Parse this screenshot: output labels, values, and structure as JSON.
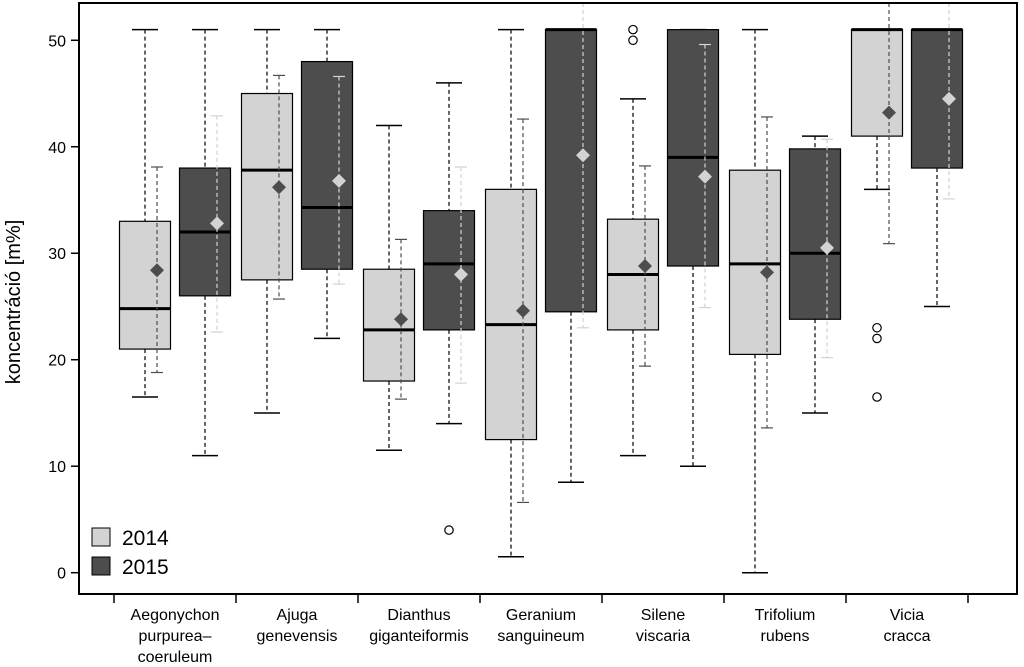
{
  "chart_data": {
    "type": "boxplot",
    "ylabel": "koncentráció [m%]",
    "ylim": [
      -2,
      53.5
    ],
    "yticks": [
      0,
      10,
      20,
      30,
      40,
      50
    ],
    "grid": false,
    "legend_position": "bottom-left",
    "categories": [
      "Aegonychon purpurea– coeruleum",
      "Ajuga genevensis",
      "Dianthus giganteiformis",
      "Geranium sanguineum",
      "Silene viscaria",
      "Trifolium rubens",
      "Vicia cracca"
    ],
    "category_lines": [
      [
        "Aegonychon",
        "purpurea–",
        "coeruleum"
      ],
      [
        "Ajuga",
        "genevensis"
      ],
      [
        "Dianthus",
        "giganteiformis"
      ],
      [
        "Geranium",
        "sanguineum"
      ],
      [
        "Silene",
        "viscaria"
      ],
      [
        "Trifolium",
        "rubens"
      ],
      [
        "Vicia",
        "cracca"
      ]
    ],
    "series": [
      {
        "name": "2014",
        "color": "#d3d3d3",
        "mean_marker_color": "#4d4d4d",
        "boxes": [
          {
            "whisker_low": 16.5,
            "q1": 21.0,
            "median": 24.8,
            "q3": 33.0,
            "whisker_high": 51.0,
            "mean": 28.4,
            "outliers": []
          },
          {
            "whisker_low": 15.0,
            "q1": 27.5,
            "median": 37.8,
            "q3": 45.0,
            "whisker_high": 51.0,
            "mean": 36.2,
            "outliers": []
          },
          {
            "whisker_low": 11.5,
            "q1": 18.0,
            "median": 22.8,
            "q3": 28.5,
            "whisker_high": 42.0,
            "mean": 23.8,
            "outliers": []
          },
          {
            "whisker_low": 1.5,
            "q1": 12.5,
            "median": 23.3,
            "q3": 36.0,
            "whisker_high": 51.0,
            "mean": 24.6,
            "outliers": []
          },
          {
            "whisker_low": 11.0,
            "q1": 22.8,
            "median": 28.0,
            "q3": 33.2,
            "whisker_high": 44.5,
            "mean": 28.8,
            "outliers": [
              50.0,
              51.0
            ]
          },
          {
            "whisker_low": 0.0,
            "q1": 20.5,
            "median": 29.0,
            "q3": 37.8,
            "whisker_high": 51.0,
            "mean": 28.2,
            "outliers": []
          },
          {
            "whisker_low": 36.0,
            "q1": 41.0,
            "median": 51.0,
            "q3": 51.0,
            "whisker_high": 51.0,
            "mean": 43.2,
            "outliers": [
              16.5,
              22.0,
              23.0
            ]
          }
        ],
        "sd_bars": [
          {
            "low": 18.8,
            "high": 38.1
          },
          {
            "low": 25.7,
            "high": 46.7
          },
          {
            "low": 16.3,
            "high": 31.3
          },
          {
            "low": 6.6,
            "high": 42.6
          },
          {
            "low": 19.4,
            "high": 38.2
          },
          {
            "low": 13.6,
            "high": 42.8
          },
          {
            "low": 30.9,
            "high": 53.5
          }
        ]
      },
      {
        "name": "2015",
        "color": "#4d4d4d",
        "mean_marker_color": "#d3d3d3",
        "boxes": [
          {
            "whisker_low": 11.0,
            "q1": 26.0,
            "median": 32.0,
            "q3": 38.0,
            "whisker_high": 51.0,
            "mean": 32.8,
            "outliers": []
          },
          {
            "whisker_low": 22.0,
            "q1": 28.5,
            "median": 34.3,
            "q3": 48.0,
            "whisker_high": 51.0,
            "mean": 36.8,
            "outliers": []
          },
          {
            "whisker_low": 14.0,
            "q1": 22.8,
            "median": 29.0,
            "q3": 34.0,
            "whisker_high": 46.0,
            "mean": 28.0,
            "outliers": [
              4.0
            ]
          },
          {
            "whisker_low": 8.5,
            "q1": 24.5,
            "median": 51.0,
            "q3": 51.0,
            "whisker_high": 51.0,
            "mean": 39.2,
            "outliers": []
          },
          {
            "whisker_low": 10.0,
            "q1": 28.8,
            "median": 39.0,
            "q3": 51.0,
            "whisker_high": 51.0,
            "mean": 37.2,
            "outliers": []
          },
          {
            "whisker_low": 15.0,
            "q1": 23.8,
            "median": 30.0,
            "q3": 39.8,
            "whisker_high": 41.0,
            "mean": 30.5,
            "outliers": []
          },
          {
            "whisker_low": 25.0,
            "q1": 38.0,
            "median": 51.0,
            "q3": 51.0,
            "whisker_high": 51.0,
            "mean": 44.5,
            "outliers": []
          }
        ],
        "sd_bars": [
          {
            "low": 22.6,
            "high": 42.9
          },
          {
            "low": 27.1,
            "high": 46.6
          },
          {
            "low": 17.8,
            "high": 38.1
          },
          {
            "low": 23.0,
            "high": 53.5
          },
          {
            "low": 24.9,
            "high": 49.6
          },
          {
            "low": 20.2,
            "high": 40.7
          },
          {
            "low": 35.1,
            "high": 53.5
          }
        ]
      }
    ]
  }
}
